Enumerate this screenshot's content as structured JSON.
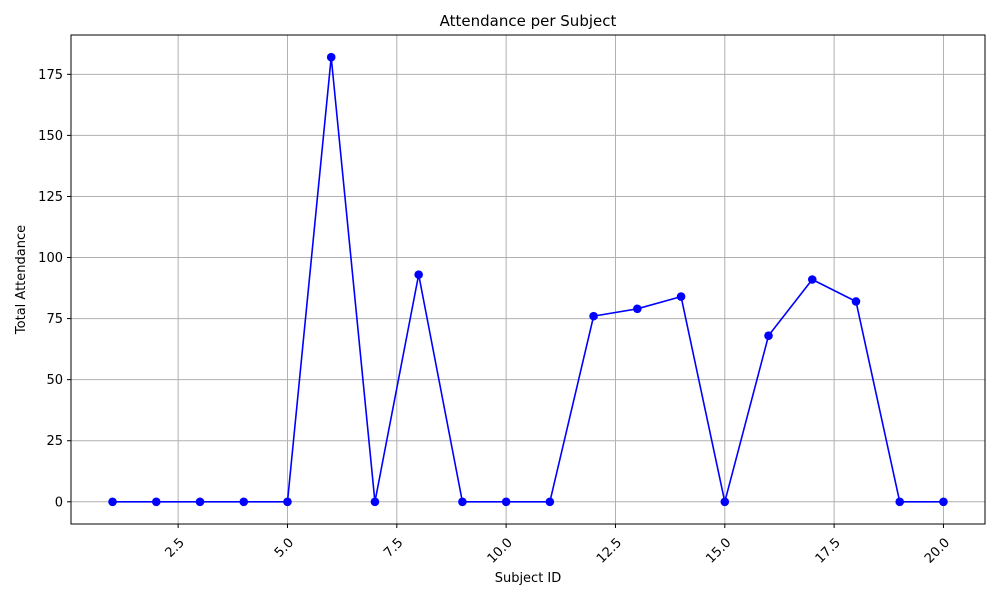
{
  "chart_data": {
    "type": "line",
    "title": "Attendance per Subject",
    "xlabel": "Subject ID",
    "ylabel": "Total Attendance",
    "x": [
      1,
      2,
      3,
      4,
      5,
      6,
      7,
      8,
      9,
      10,
      11,
      12,
      13,
      14,
      15,
      16,
      17,
      18,
      19,
      20
    ],
    "series": [
      {
        "values": [
          0,
          0,
          0,
          0,
          0,
          182,
          0,
          93,
          0,
          0,
          0,
          76,
          79,
          84,
          0,
          68,
          91,
          82,
          0,
          0
        ],
        "color": "#0000ff",
        "marker": "circle"
      }
    ],
    "xlim": [
      0.05,
      20.95
    ],
    "ylim": [
      -9.1,
      191.1
    ],
    "xticks": [
      2.5,
      5.0,
      7.5,
      10.0,
      12.5,
      15.0,
      17.5,
      20.0
    ],
    "xtick_labels": [
      "2.5",
      "5.0",
      "7.5",
      "10.0",
      "12.5",
      "15.0",
      "17.5",
      "20.0"
    ],
    "xtick_rotation": 45,
    "yticks": [
      0,
      25,
      50,
      75,
      100,
      125,
      150,
      175
    ],
    "ytick_labels": [
      "0",
      "25",
      "50",
      "75",
      "100",
      "125",
      "150",
      "175"
    ],
    "grid": true,
    "grid_color": "#b0b0b0"
  }
}
